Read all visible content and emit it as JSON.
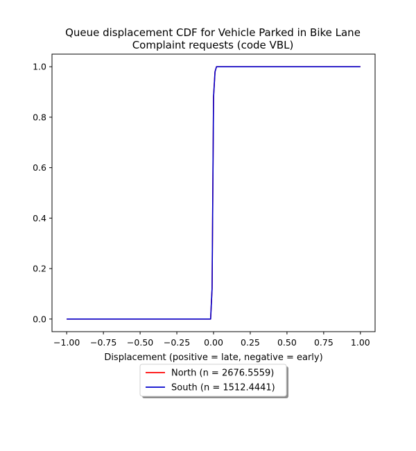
{
  "chart_data": {
    "type": "line",
    "title": "Queue displacement CDF for Vehicle Parked in Bike Lane\nComplaint  requests (code VBL)",
    "xlabel": "Displacement (positive = late, negative = early)",
    "ylabel": "",
    "xlim": [
      -1.1,
      1.1
    ],
    "ylim": [
      -0.05,
      1.05
    ],
    "xticks": [
      -1.0,
      -0.75,
      -0.5,
      -0.25,
      0.0,
      0.25,
      0.5,
      0.75,
      1.0
    ],
    "xtick_labels": [
      "−1.00",
      "−0.75",
      "−0.50",
      "−0.25",
      "0.00",
      "0.25",
      "0.50",
      "0.75",
      "1.00"
    ],
    "yticks": [
      0.0,
      0.2,
      0.4,
      0.6,
      0.8,
      1.0
    ],
    "ytick_labels": [
      "0.0",
      "0.2",
      "0.4",
      "0.6",
      "0.8",
      "1.0"
    ],
    "grid": false,
    "legend_position": "below plot, centered",
    "series": [
      {
        "name": "North (n = 2676.5559)",
        "color": "#ff0000",
        "x": [
          -1.0,
          -0.02,
          -0.01,
          0.0,
          0.01,
          0.02,
          1.0
        ],
        "y": [
          0.0,
          0.0,
          0.12,
          0.88,
          0.98,
          1.0,
          1.0
        ]
      },
      {
        "name": "South (n = 1512.4441)",
        "color": "#0000cc",
        "x": [
          -1.0,
          -0.02,
          -0.01,
          0.0,
          0.01,
          0.02,
          1.0
        ],
        "y": [
          0.0,
          0.0,
          0.12,
          0.88,
          0.98,
          1.0,
          1.0
        ]
      }
    ]
  }
}
